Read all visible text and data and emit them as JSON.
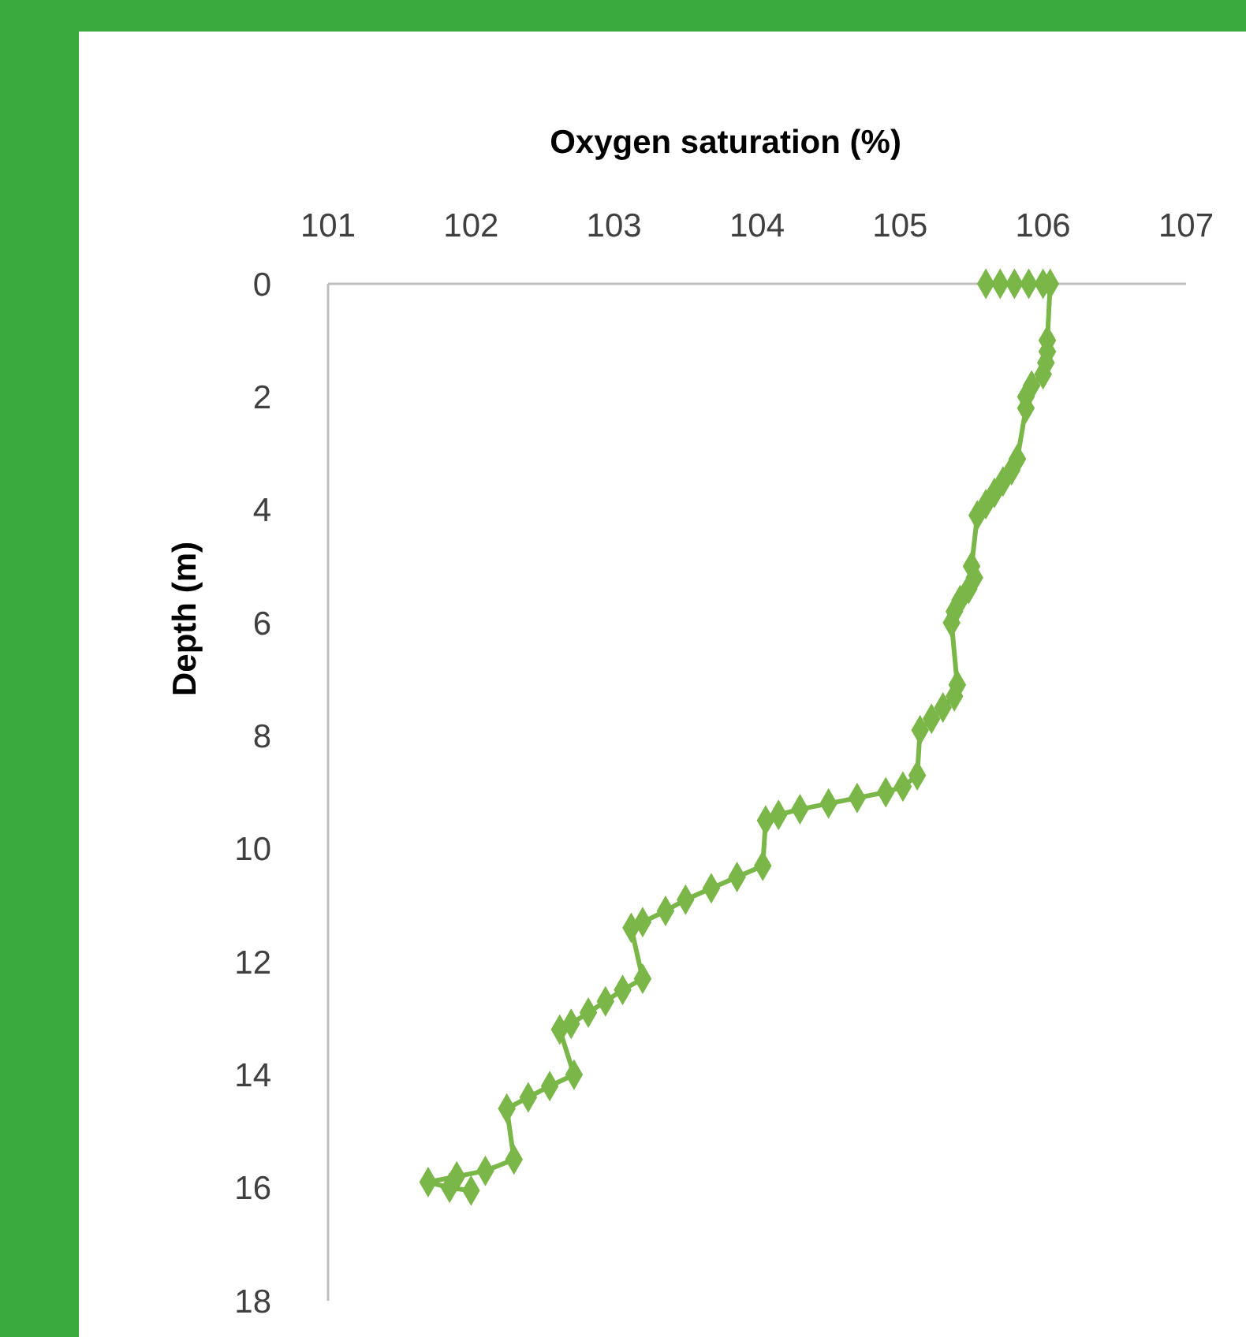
{
  "chart_data": {
    "type": "line",
    "xlabel": "Oxygen saturation (%)",
    "ylabel": "Depth (m)",
    "xlim": [
      101,
      107
    ],
    "xticks": [
      101,
      102,
      103,
      104,
      105,
      106,
      107
    ],
    "ylim": [
      18,
      0
    ],
    "yticks": [
      0,
      2,
      4,
      6,
      8,
      10,
      12,
      14,
      16,
      18
    ],
    "grid": false,
    "marker": "diamond",
    "line_style": "solid",
    "series": [
      {
        "color": "#7ab648",
        "x": [
          105.6,
          105.7,
          105.8,
          105.9,
          106.0,
          106.05,
          106.03,
          106.03,
          106.02,
          106.0,
          105.92,
          105.88,
          105.88,
          105.82,
          105.78,
          105.72,
          105.66,
          105.6,
          105.54,
          105.5,
          105.52,
          105.48,
          105.42,
          105.38,
          105.36,
          105.4,
          105.38,
          105.3,
          105.22,
          105.14,
          105.12,
          105.02,
          104.9,
          104.7,
          104.5,
          104.3,
          104.15,
          104.06,
          104.04,
          103.86,
          103.68,
          103.5,
          103.36,
          103.2,
          103.12,
          103.2,
          103.06,
          102.94,
          102.82,
          102.7,
          102.62,
          102.72,
          102.55,
          102.4,
          102.25,
          102.3,
          102.1,
          101.9,
          101.7,
          101.85,
          102.0
        ],
        "values": [
          0,
          0,
          0,
          0,
          0,
          0,
          1.0,
          1.2,
          1.4,
          1.6,
          1.8,
          2.0,
          2.2,
          3.1,
          3.3,
          3.5,
          3.7,
          3.9,
          4.1,
          5.0,
          5.2,
          5.4,
          5.6,
          5.8,
          6.0,
          7.1,
          7.3,
          7.5,
          7.7,
          7.9,
          8.7,
          8.9,
          9.0,
          9.1,
          9.2,
          9.3,
          9.4,
          9.5,
          10.3,
          10.5,
          10.7,
          10.9,
          11.1,
          11.3,
          11.4,
          12.3,
          12.5,
          12.7,
          12.9,
          13.1,
          13.2,
          14.0,
          14.2,
          14.4,
          14.6,
          15.5,
          15.7,
          15.8,
          15.9,
          16.0,
          16.05
        ]
      }
    ]
  }
}
